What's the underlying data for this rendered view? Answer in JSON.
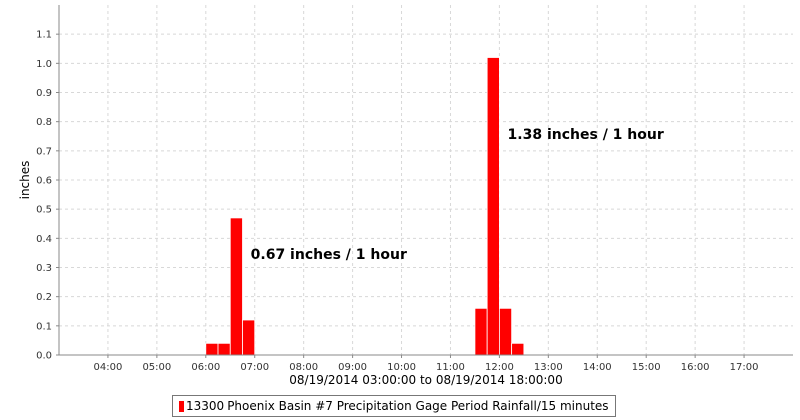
{
  "chart_data": {
    "type": "bar",
    "ylabel": "inches",
    "xlabel": "08/19/2014 03:00:00 to 08/19/2014 18:00:00",
    "ylim": [
      0.0,
      1.2
    ],
    "xlim": [
      "03:00",
      "18:00"
    ],
    "y_ticks": [
      "0.0",
      "0.1",
      "0.2",
      "0.3",
      "0.4",
      "0.5",
      "0.6",
      "0.7",
      "0.8",
      "0.9",
      "1.0",
      "1.1"
    ],
    "x_ticks": [
      "04:00",
      "05:00",
      "06:00",
      "07:00",
      "08:00",
      "09:00",
      "10:00",
      "11:00",
      "12:00",
      "13:00",
      "14:00",
      "15:00",
      "16:00",
      "17:00"
    ],
    "grid": true,
    "bar_interval": "15 minutes",
    "series": [
      {
        "name": "13300 Phoenix Basin #7 Precipitation Gage Period Rainfall/15 minutes",
        "color": "#ff0000",
        "points": [
          {
            "time": "06:00",
            "value": 0.04
          },
          {
            "time": "06:15",
            "value": 0.04
          },
          {
            "time": "06:30",
            "value": 0.47
          },
          {
            "time": "06:45",
            "value": 0.12
          },
          {
            "time": "11:30",
            "value": 0.16
          },
          {
            "time": "11:45",
            "value": 1.02
          },
          {
            "time": "12:00",
            "value": 0.16
          },
          {
            "time": "12:15",
            "value": 0.04
          }
        ]
      }
    ],
    "annotations": [
      {
        "text": "0.67 inches / 1 hour",
        "time": "06:55",
        "value": 0.33
      },
      {
        "text": "1.38 inches / 1 hour",
        "time": "12:10",
        "value": 0.74
      }
    ]
  },
  "legend": {
    "station": "13300",
    "label": "Phoenix Basin #7 Precipitation Gage Period Rainfall/15 minutes"
  }
}
